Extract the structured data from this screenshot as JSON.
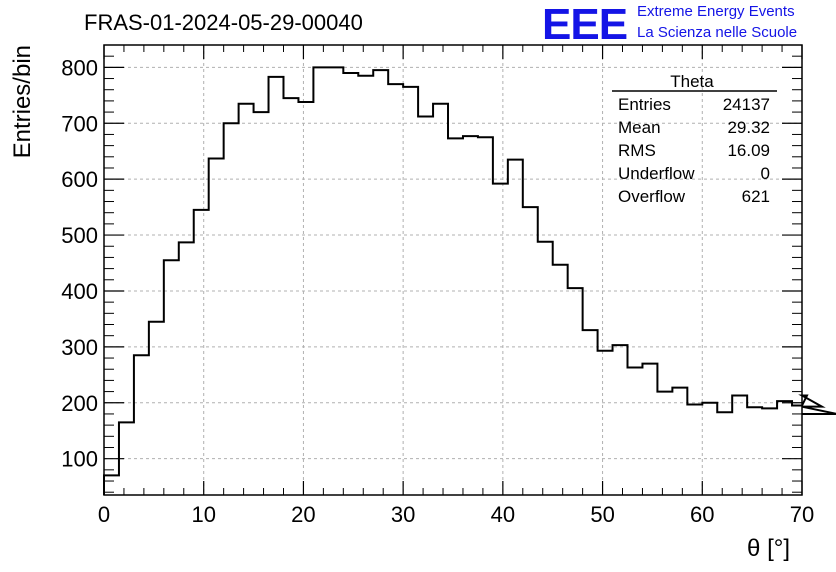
{
  "header": {
    "title": "FRAS-01-2024-05-29-00040",
    "logo_text": "EEE",
    "brand_line1": "Extreme Energy Events",
    "brand_line2": "La Scienza nelle Scuole",
    "brand_color": "#1414e6"
  },
  "stats": {
    "name": "Theta",
    "rows": [
      {
        "label": "Entries",
        "value": "24137"
      },
      {
        "label": "Mean",
        "value": "29.32"
      },
      {
        "label": "RMS",
        "value": "16.09"
      },
      {
        "label": "Underflow",
        "value": "0"
      },
      {
        "label": "Overflow",
        "value": "621"
      }
    ]
  },
  "chart_data": {
    "type": "bar",
    "style": "step-histogram",
    "xlabel": "θ [°]",
    "ylabel": "Entries/bin",
    "xlim": [
      0,
      70
    ],
    "ylim": [
      35,
      840
    ],
    "grid": true,
    "x_ticks": [
      0,
      10,
      20,
      30,
      40,
      50,
      60,
      70
    ],
    "y_ticks": [
      100,
      200,
      300,
      400,
      500,
      600,
      700,
      800
    ],
    "bin_width": 1.5,
    "bin_edges_start": 0,
    "values": [
      70,
      165,
      285,
      345,
      455,
      487,
      545,
      637,
      700,
      735,
      720,
      783,
      745,
      738,
      800,
      800,
      790,
      785,
      795,
      770,
      765,
      712,
      735,
      673,
      677,
      675,
      592,
      635,
      550,
      488,
      447,
      405,
      330,
      293,
      303,
      263,
      270,
      220,
      227,
      197,
      200,
      183,
      213,
      192,
      190,
      203,
      195,
      213,
      193,
      180
    ]
  }
}
